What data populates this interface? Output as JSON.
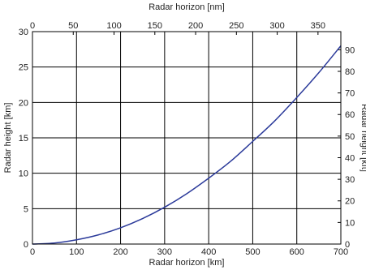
{
  "chart_data": {
    "type": "line",
    "xlabel": "Radar horizon [km]",
    "ylabel": "Radar height [km]",
    "x2label": "Radar horizon [nm]",
    "y2label": "Radar height [kft]",
    "xlim": [
      0,
      700
    ],
    "ylim": [
      0,
      30
    ],
    "x2lim": [
      0,
      378
    ],
    "y2lim": [
      0,
      98.4
    ],
    "grid": true,
    "xticks": [
      0,
      100,
      200,
      300,
      400,
      500,
      600,
      700
    ],
    "yticks": [
      0,
      5,
      10,
      15,
      20,
      25,
      30
    ],
    "x2ticks": [
      0,
      50,
      100,
      150,
      200,
      250,
      300,
      350
    ],
    "y2ticks": [
      0,
      10,
      20,
      30,
      40,
      50,
      60,
      70,
      80,
      90
    ],
    "series": [
      {
        "x": [
          0,
          50,
          100,
          150,
          200,
          250,
          300,
          350,
          400,
          450,
          500,
          550,
          600,
          650,
          700
        ],
        "y": [
          0,
          0.15,
          0.6,
          1.3,
          2.3,
          3.6,
          5.2,
          7.1,
          9.3,
          11.7,
          14.5,
          17.4,
          20.7,
          24.2,
          28.0
        ]
      }
    ],
    "colors": {
      "line": "#2b3a9a",
      "grid": "#000000"
    }
  }
}
